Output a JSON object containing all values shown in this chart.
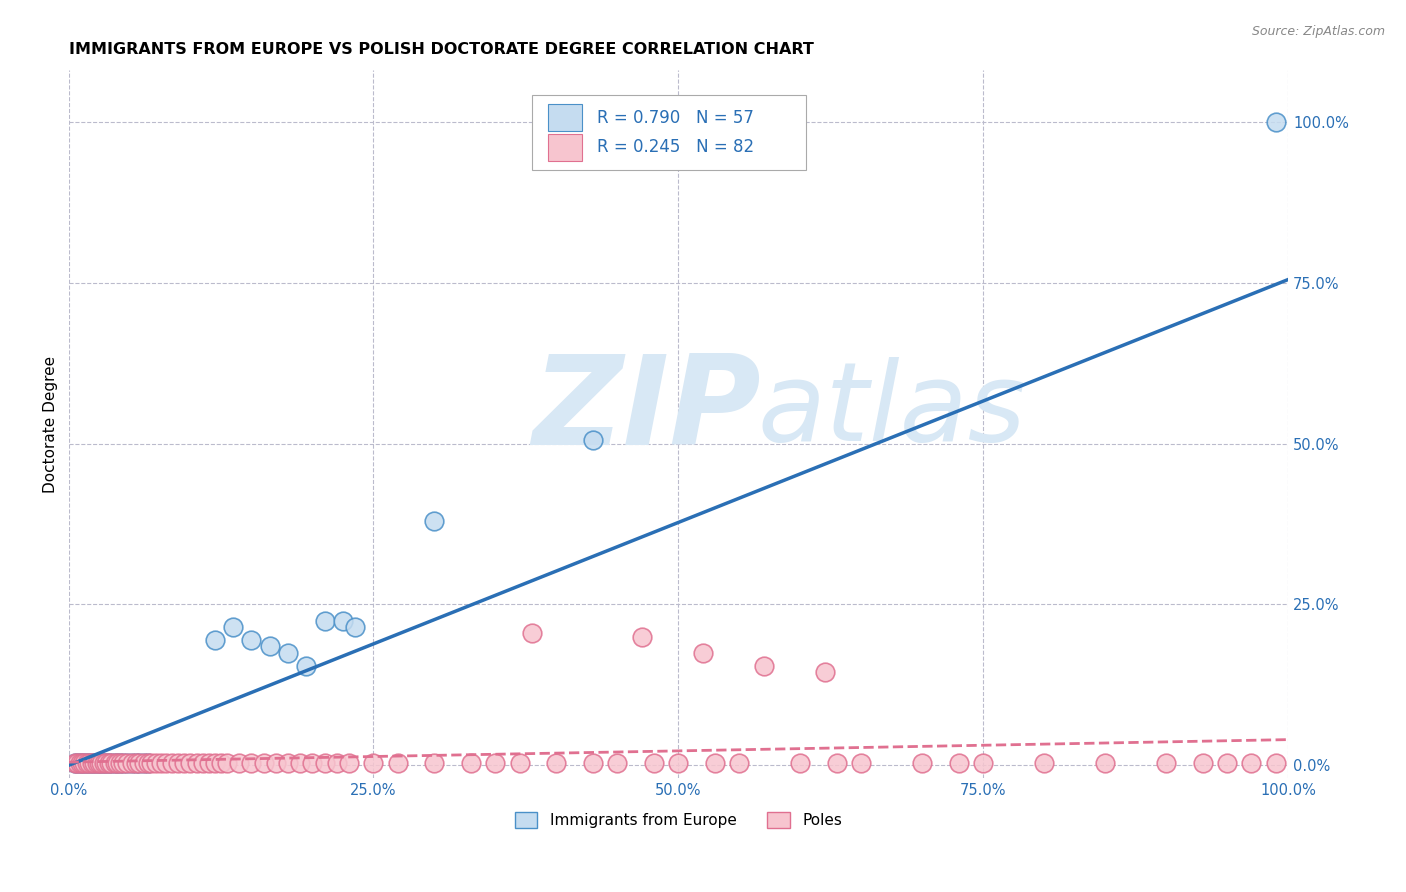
{
  "title": "IMMIGRANTS FROM EUROPE VS POLISH DOCTORATE DEGREE CORRELATION CHART",
  "source": "Source: ZipAtlas.com",
  "ylabel": "Doctorate Degree",
  "xlim": [
    0,
    1.0
  ],
  "ylim": [
    -0.02,
    1.08
  ],
  "x_ticks": [
    0,
    0.25,
    0.5,
    0.75,
    1.0
  ],
  "x_tick_labels": [
    "0.0%",
    "25.0%",
    "50.0%",
    "75.0%",
    "100.0%"
  ],
  "y_ticks": [
    0,
    0.25,
    0.5,
    0.75,
    1.0
  ],
  "y_tick_labels": [
    "0.0%",
    "25.0%",
    "50.0%",
    "75.0%",
    "100.0%"
  ],
  "blue_R": "0.790",
  "blue_N": "57",
  "pink_R": "0.245",
  "pink_N": "82",
  "blue_fill_color": "#c5dcf0",
  "blue_edge_color": "#4a90c8",
  "pink_fill_color": "#f7c5cf",
  "pink_edge_color": "#e07090",
  "blue_line_color": "#2a6fb5",
  "pink_line_color": "#e07090",
  "blue_scatter_x": [
    0.005,
    0.007,
    0.009,
    0.011,
    0.013,
    0.015,
    0.017,
    0.019,
    0.021,
    0.023,
    0.025,
    0.027,
    0.029,
    0.031,
    0.033,
    0.035,
    0.038,
    0.04,
    0.042,
    0.045,
    0.048,
    0.052,
    0.055,
    0.058,
    0.062,
    0.065,
    0.12,
    0.135,
    0.15,
    0.165,
    0.18,
    0.195,
    0.21,
    0.225,
    0.235,
    0.3,
    0.43,
    0.99
  ],
  "blue_scatter_y": [
    0.003,
    0.003,
    0.003,
    0.003,
    0.003,
    0.003,
    0.003,
    0.003,
    0.003,
    0.003,
    0.003,
    0.003,
    0.003,
    0.003,
    0.003,
    0.003,
    0.003,
    0.003,
    0.003,
    0.003,
    0.003,
    0.003,
    0.003,
    0.003,
    0.003,
    0.003,
    0.195,
    0.215,
    0.195,
    0.185,
    0.175,
    0.155,
    0.225,
    0.225,
    0.215,
    0.38,
    0.505,
    1.0
  ],
  "pink_scatter_x": [
    0.005,
    0.007,
    0.009,
    0.011,
    0.013,
    0.015,
    0.017,
    0.019,
    0.021,
    0.023,
    0.025,
    0.027,
    0.029,
    0.031,
    0.033,
    0.035,
    0.038,
    0.04,
    0.042,
    0.045,
    0.048,
    0.052,
    0.055,
    0.058,
    0.062,
    0.065,
    0.068,
    0.072,
    0.076,
    0.08,
    0.085,
    0.09,
    0.095,
    0.1,
    0.105,
    0.11,
    0.115,
    0.12,
    0.125,
    0.13,
    0.14,
    0.15,
    0.16,
    0.17,
    0.18,
    0.19,
    0.2,
    0.21,
    0.22,
    0.23,
    0.25,
    0.27,
    0.3,
    0.33,
    0.35,
    0.37,
    0.4,
    0.43,
    0.45,
    0.48,
    0.5,
    0.53,
    0.55,
    0.6,
    0.63,
    0.65,
    0.7,
    0.73,
    0.75,
    0.8,
    0.85,
    0.9,
    0.93,
    0.95,
    0.97,
    0.99,
    0.38,
    0.47,
    0.52,
    0.57,
    0.62
  ],
  "pink_scatter_y": [
    0.003,
    0.003,
    0.003,
    0.003,
    0.003,
    0.003,
    0.003,
    0.003,
    0.003,
    0.003,
    0.003,
    0.003,
    0.003,
    0.003,
    0.003,
    0.003,
    0.003,
    0.003,
    0.003,
    0.003,
    0.003,
    0.003,
    0.003,
    0.003,
    0.003,
    0.003,
    0.003,
    0.003,
    0.003,
    0.003,
    0.003,
    0.003,
    0.003,
    0.003,
    0.003,
    0.003,
    0.003,
    0.003,
    0.003,
    0.003,
    0.003,
    0.003,
    0.003,
    0.003,
    0.003,
    0.003,
    0.003,
    0.003,
    0.003,
    0.003,
    0.003,
    0.003,
    0.003,
    0.003,
    0.003,
    0.003,
    0.003,
    0.003,
    0.003,
    0.003,
    0.003,
    0.003,
    0.003,
    0.003,
    0.003,
    0.003,
    0.003,
    0.003,
    0.003,
    0.003,
    0.003,
    0.003,
    0.003,
    0.003,
    0.003,
    0.003,
    0.205,
    0.2,
    0.175,
    0.155,
    0.145
  ],
  "blue_trend_x": [
    0.0,
    1.0
  ],
  "blue_trend_y": [
    0.0,
    0.755
  ],
  "pink_trend_x": [
    0.0,
    1.0
  ],
  "pink_trend_y": [
    0.005,
    0.04
  ],
  "watermark_zip": "ZIP",
  "watermark_atlas": "atlas",
  "watermark_color": "#d8e8f5",
  "background_color": "#ffffff",
  "grid_color": "#bbbbcc",
  "title_fontsize": 11.5,
  "axis_label_fontsize": 11,
  "tick_label_fontsize": 10.5,
  "legend_fontsize": 12,
  "source_fontsize": 9
}
